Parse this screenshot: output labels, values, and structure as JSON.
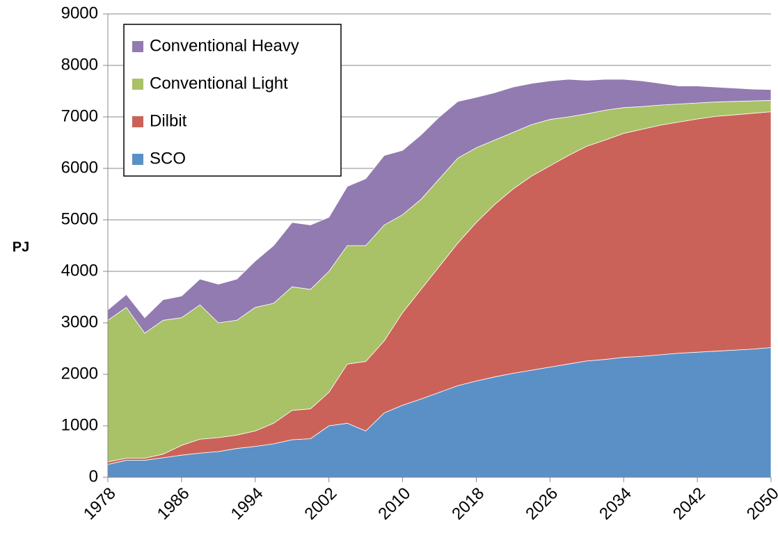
{
  "chart_data": {
    "type": "area",
    "stacked": true,
    "y_label": "PJ",
    "x": [
      1978,
      1980,
      1982,
      1984,
      1986,
      1988,
      1990,
      1992,
      1994,
      1996,
      1998,
      2000,
      2002,
      2004,
      2006,
      2008,
      2010,
      2012,
      2014,
      2016,
      2018,
      2020,
      2022,
      2024,
      2026,
      2028,
      2030,
      2032,
      2034,
      2036,
      2038,
      2040,
      2042,
      2044,
      2046,
      2048,
      2050
    ],
    "xlim": [
      1978,
      2050
    ],
    "xticks": [
      1978,
      1986,
      1994,
      2002,
      2010,
      2018,
      2026,
      2034,
      2042,
      2050
    ],
    "ylim": [
      0,
      9000
    ],
    "yticks": [
      0,
      1000,
      2000,
      3000,
      4000,
      5000,
      6000,
      7000,
      8000,
      9000
    ],
    "grid": true,
    "legend": "upper left",
    "series": [
      {
        "name": "SCO",
        "color": "#5b90c6",
        "values": [
          250,
          330,
          330,
          380,
          430,
          470,
          500,
          560,
          600,
          650,
          730,
          750,
          1000,
          1050,
          900,
          1250,
          1400,
          1520,
          1650,
          1780,
          1870,
          1950,
          2020,
          2080,
          2140,
          2200,
          2260,
          2290,
          2330,
          2350,
          2380,
          2410,
          2430,
          2450,
          2470,
          2490,
          2520
        ]
      },
      {
        "name": "Dilbit",
        "color": "#cb6259",
        "values": [
          50,
          40,
          40,
          70,
          190,
          270,
          270,
          260,
          300,
          400,
          570,
          580,
          650,
          1150,
          1350,
          1400,
          1800,
          2130,
          2450,
          2770,
          3080,
          3350,
          3580,
          3770,
          3910,
          4050,
          4170,
          4260,
          4350,
          4410,
          4460,
          4490,
          4530,
          4560,
          4570,
          4580,
          4580
        ]
      },
      {
        "name": "Conventional Light",
        "color": "#a9c167",
        "values": [
          2750,
          2930,
          2430,
          2600,
          2480,
          2610,
          2230,
          2230,
          2400,
          2330,
          2400,
          2320,
          2350,
          2300,
          2250,
          2250,
          1900,
          1750,
          1700,
          1650,
          1450,
          1250,
          1100,
          1000,
          900,
          750,
          630,
          580,
          500,
          440,
          390,
          350,
          310,
          280,
          260,
          240,
          220
        ]
      },
      {
        "name": "Conventional Heavy",
        "color": "#927bb0",
        "values": [
          200,
          250,
          300,
          400,
          420,
          500,
          750,
          800,
          900,
          1120,
          1250,
          1250,
          1050,
          1150,
          1300,
          1350,
          1250,
          1250,
          1200,
          1100,
          980,
          920,
          880,
          800,
          750,
          730,
          650,
          600,
          550,
          500,
          420,
          350,
          330,
          290,
          260,
          230,
          210
        ]
      }
    ]
  }
}
